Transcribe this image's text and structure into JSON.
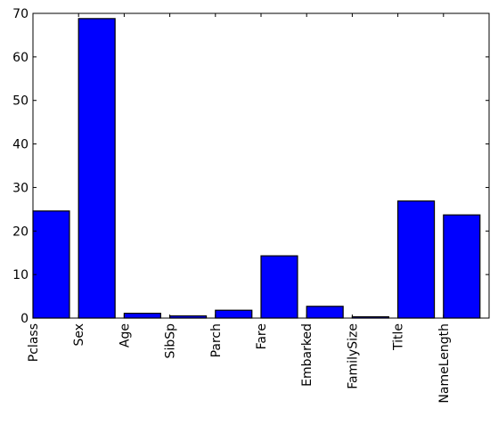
{
  "chart_data": {
    "type": "bar",
    "categories": [
      "Pclass",
      "Sex",
      "Age",
      "SibSp",
      "Parch",
      "Fare",
      "Embarked",
      "FamilySize",
      "Title",
      "NameLength"
    ],
    "values": [
      24.6,
      68.8,
      1.1,
      0.5,
      1.8,
      14.3,
      2.7,
      0.3,
      26.9,
      23.7
    ],
    "color": "#0000ff",
    "ylim": [
      0,
      70
    ],
    "yticks": [
      0,
      10,
      20,
      30,
      40,
      50,
      60,
      70
    ],
    "grid": false
  }
}
